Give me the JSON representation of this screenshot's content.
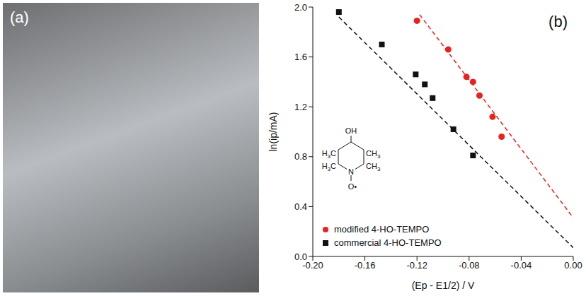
{
  "panels": {
    "a": "(a)",
    "b": "(b)"
  },
  "chart_data": {
    "type": "scatter",
    "x_label": "(Ep - E1/2) / V",
    "y_label": "ln(ip/mA)",
    "xlim": [
      -0.2,
      0.0
    ],
    "xticks": [
      {
        "value": -0.2,
        "label": "-0.20"
      },
      {
        "value": -0.16,
        "label": "-0.16"
      },
      {
        "value": -0.12,
        "label": "-0.12"
      },
      {
        "value": -0.08,
        "label": "-0.08"
      },
      {
        "value": -0.04,
        "label": "-0.04"
      },
      {
        "value": 0,
        "label": "0.00"
      }
    ],
    "ylim": [
      0.0,
      2.0
    ],
    "yticks": [
      {
        "value": 0,
        "label": "0.0"
      },
      {
        "value": 0.4,
        "label": "0.4"
      },
      {
        "value": 0.8,
        "label": "0.8"
      },
      {
        "value": 1.2,
        "label": "1.2"
      },
      {
        "value": 1.6,
        "label": "1.6"
      },
      {
        "value": 2.0,
        "label": "2.0"
      }
    ],
    "grid": false,
    "legend": "lower left",
    "inset_labels": [
      "OH",
      "H3C",
      "CH3",
      "H3C",
      "CH3",
      "N",
      "O•"
    ],
    "series": [
      {
        "name": "modified 4-HO-TEMPO",
        "color": "#e8231f",
        "marker": "circle",
        "x": [
          -0.12,
          -0.096,
          -0.082,
          -0.077,
          -0.072,
          -0.062,
          -0.055
        ],
        "values": [
          1.89,
          1.66,
          1.44,
          1.4,
          1.29,
          1.12,
          0.96
        ],
        "fit_line_style": "dashed",
        "fit_x": [
          -0.118,
          0.0
        ],
        "fit_values": [
          1.94,
          0.31
        ]
      },
      {
        "name": "commercial 4-HO-TEMPO",
        "color": "#111111",
        "marker": "square",
        "x": [
          -0.18,
          -0.147,
          -0.121,
          -0.114,
          -0.108,
          -0.092,
          -0.077
        ],
        "values": [
          1.96,
          1.7,
          1.46,
          1.38,
          1.27,
          1.02,
          0.81
        ],
        "fit_line_style": "dashed",
        "fit_x": [
          -0.18,
          0.0
        ],
        "fit_values": [
          1.92,
          0.07
        ]
      }
    ]
  }
}
